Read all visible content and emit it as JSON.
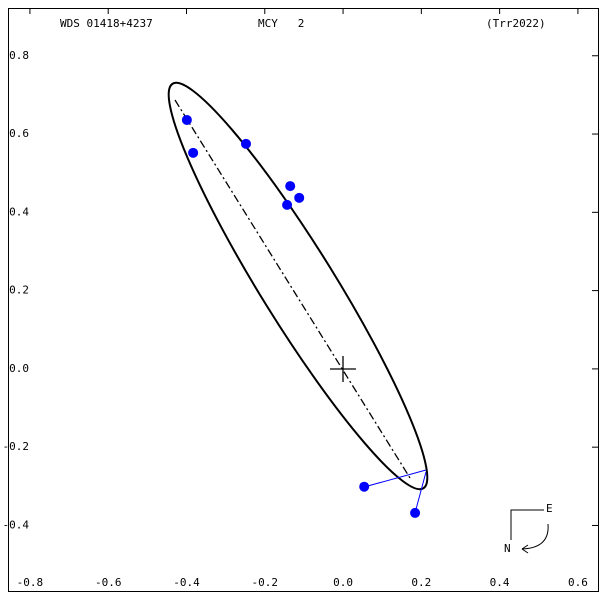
{
  "chart_data": {
    "type": "scatter",
    "title": "WDS 01418+4237",
    "subtitle": "MCY   2",
    "reference": "(Trr2022)",
    "compass": {
      "east": "E",
      "north": "N"
    },
    "x": [
      -0.399,
      -0.383,
      -0.248,
      -0.135,
      -0.143,
      -0.112,
      0.054,
      0.184
    ],
    "values": [
      0.636,
      0.552,
      0.575,
      0.467,
      0.419,
      0.437,
      -0.301,
      -0.368
    ],
    "color": "#0000ff",
    "xlim": [
      -0.856,
      0.636
    ],
    "ylim": [
      -0.57,
      0.922
    ],
    "xticks": [
      -0.8,
      -0.6,
      -0.4,
      -0.2,
      {
        "value": 0,
        "label": "0.0"
      },
      0.2,
      0.4,
      0.6
    ],
    "yticks": [
      0.8,
      0.6,
      0.4,
      0.2,
      {
        "value": 0,
        "label": "0.0"
      },
      -0.2,
      -0.4
    ]
  }
}
